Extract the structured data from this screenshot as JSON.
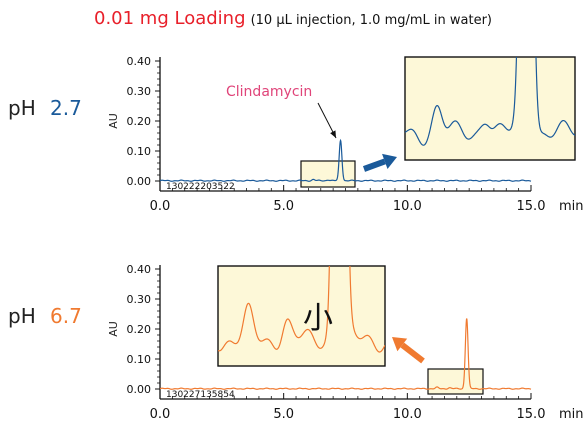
{
  "title": {
    "main": "0.01 mg Loading",
    "sub": "(10 µL injection, 1.0 mg/mL in water)"
  },
  "colors": {
    "ph27": "#1a5a9a",
    "ph67": "#f07a30",
    "inset_bg": "#fdf8d8",
    "annotation": "#e0457a"
  },
  "chart_data": [
    {
      "type": "line",
      "condition_label": "pH",
      "condition_value": "2.7",
      "ylabel": "AU",
      "xlabel": "min",
      "xlim": [
        0,
        15
      ],
      "ylim": [
        -0.02,
        0.4
      ],
      "x_ticks": [
        "0.0",
        "5.0",
        "10.0",
        "15.0"
      ],
      "y_ticks": [
        "0.00",
        "0.10",
        "0.20",
        "0.30",
        "0.40"
      ],
      "run_id": "130222203522",
      "annotation": "Clindamycin",
      "peaks": [
        {
          "rt": 7.3,
          "height": 0.135
        },
        {
          "rt": 6.2,
          "height": 0.004
        },
        {
          "rt": 6.8,
          "height": 0.003
        }
      ],
      "zoom_range": [
        5.8,
        7.9
      ]
    },
    {
      "type": "line",
      "condition_label": "pH",
      "condition_value": "6.7",
      "ylabel": "AU",
      "xlabel": "min",
      "xlim": [
        0,
        15
      ],
      "ylim": [
        -0.02,
        0.4
      ],
      "x_ticks": [
        "0.0",
        "5.0",
        "10.0",
        "15.0"
      ],
      "y_ticks": [
        "0.00",
        "0.10",
        "0.20",
        "0.30",
        "0.40"
      ],
      "run_id": "130227135854",
      "annotation_cjk": "小",
      "peaks": [
        {
          "rt": 12.4,
          "height": 0.235
        },
        {
          "rt": 11.2,
          "height": 0.004
        },
        {
          "rt": 11.7,
          "height": 0.003
        }
      ],
      "zoom_range": [
        10.8,
        13.0
      ]
    }
  ]
}
